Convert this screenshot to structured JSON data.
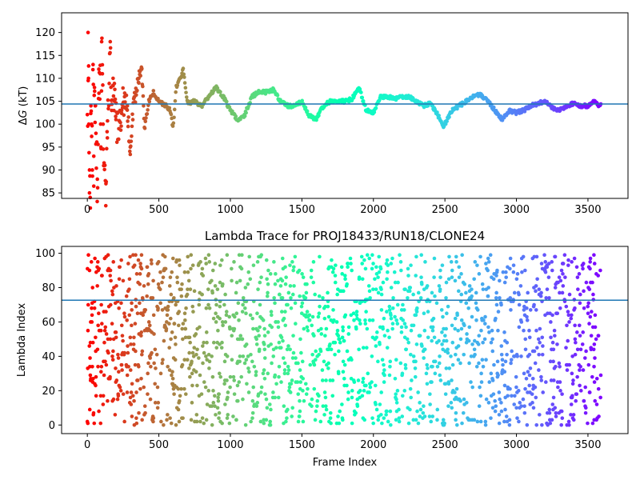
{
  "chart_data": [
    {
      "type": "scatter",
      "title": "",
      "xlabel": "",
      "ylabel": "ΔG (kT)",
      "ylabel_symbol": "ΔG",
      "ylabel_unit": "(kT)",
      "xlim": [
        -180,
        3780
      ],
      "ylim": [
        83.8,
        124.3
      ],
      "xticks": [
        0,
        500,
        1000,
        1500,
        2000,
        2500,
        3000,
        3500
      ],
      "yticks": [
        85,
        90,
        95,
        100,
        105,
        110,
        115,
        120
      ],
      "hline": 104.4,
      "hline_color": "#1f77b4",
      "colormap": "rainbow (reversed: red at frame 0, violet at end)",
      "grid": false,
      "series": [
        {
          "points_approx": [
            [
              5,
              120
            ],
            [
              8,
              110
            ],
            [
              10,
              100
            ],
            [
              15,
              90
            ],
            [
              20,
              84
            ],
            [
              25,
              104
            ],
            [
              30,
              100
            ],
            [
              35,
              90
            ],
            [
              40,
              113
            ],
            [
              45,
              93
            ],
            [
              50,
              108
            ],
            [
              55,
              104
            ],
            [
              60,
              98
            ],
            [
              70,
              88
            ],
            [
              80,
              112
            ],
            [
              90,
              111
            ],
            [
              95,
              95
            ],
            [
              100,
              118
            ],
            [
              105,
              111
            ],
            [
              110,
              100
            ],
            [
              120,
              91
            ],
            [
              130,
              87
            ],
            [
              140,
              97
            ],
            [
              160,
              118
            ],
            [
              170,
              103
            ],
            [
              180,
              110
            ],
            [
              190,
              105
            ],
            [
              200,
              101
            ],
            [
              220,
              99
            ],
            [
              240,
              103
            ],
            [
              260,
              106
            ],
            [
              280,
              104
            ],
            [
              300,
              95
            ],
            [
              330,
              106
            ],
            [
              360,
              110
            ],
            [
              380,
              112
            ],
            [
              400,
              99
            ],
            [
              430,
              105
            ],
            [
              460,
              107
            ],
            [
              500,
              105
            ],
            [
              550,
              104
            ],
            [
              580,
              103
            ],
            [
              600,
              99
            ],
            [
              620,
              108
            ],
            [
              650,
              110
            ],
            [
              670,
              112
            ],
            [
              700,
              104.5
            ],
            [
              750,
              105
            ],
            [
              800,
              104
            ],
            [
              850,
              106
            ],
            [
              900,
              108
            ],
            [
              950,
              106
            ],
            [
              1000,
              103
            ],
            [
              1050,
              101
            ],
            [
              1100,
              102
            ],
            [
              1150,
              106
            ],
            [
              1200,
              107
            ],
            [
              1250,
              107
            ],
            [
              1300,
              107.5
            ],
            [
              1350,
              105
            ],
            [
              1400,
              104
            ],
            [
              1450,
              104
            ],
            [
              1500,
              105
            ],
            [
              1550,
              102
            ],
            [
              1600,
              101
            ],
            [
              1650,
              104
            ],
            [
              1700,
              105
            ],
            [
              1750,
              105
            ],
            [
              1800,
              105
            ],
            [
              1850,
              105.5
            ],
            [
              1900,
              108
            ],
            [
              1950,
              103
            ],
            [
              2000,
              102.5
            ],
            [
              2050,
              106
            ],
            [
              2100,
              106
            ],
            [
              2150,
              105.5
            ],
            [
              2200,
              106
            ],
            [
              2250,
              106
            ],
            [
              2300,
              105
            ],
            [
              2350,
              104
            ],
            [
              2400,
              104.5
            ],
            [
              2450,
              102
            ],
            [
              2490,
              99.5
            ],
            [
              2550,
              103
            ],
            [
              2600,
              104
            ],
            [
              2650,
              105
            ],
            [
              2700,
              106
            ],
            [
              2750,
              106.5
            ],
            [
              2800,
              105
            ],
            [
              2850,
              103
            ],
            [
              2900,
              101
            ],
            [
              2950,
              103
            ],
            [
              3000,
              102.5
            ],
            [
              3050,
              103
            ],
            [
              3100,
              104
            ],
            [
              3150,
              104.5
            ],
            [
              3200,
              105
            ],
            [
              3250,
              103.5
            ],
            [
              3300,
              103
            ],
            [
              3350,
              104
            ],
            [
              3400,
              104.5
            ],
            [
              3450,
              104
            ],
            [
              3500,
              104
            ],
            [
              3550,
              105
            ],
            [
              3580,
              104
            ]
          ]
        }
      ]
    },
    {
      "type": "scatter",
      "title": "Lambda Trace for PROJ18433/RUN18/CLONE24",
      "xlabel": "Frame Index",
      "ylabel": "Lambda Index",
      "xlim": [
        -180,
        3780
      ],
      "ylim": [
        -5,
        104
      ],
      "xticks": [
        0,
        500,
        1000,
        1500,
        2000,
        2500,
        3000,
        3500
      ],
      "yticks": [
        0,
        20,
        40,
        60,
        80,
        100
      ],
      "hline": 72.7,
      "hline_color": "#1f77b4",
      "colormap": "rainbow (reversed: red at frame 0, violet at end)",
      "grid": false,
      "series": [
        {
          "description_points": "dense random scatter of lambda index 0–99 across frames 0–3590"
        }
      ]
    }
  ],
  "colors": {
    "hline": "#1f77b4",
    "axes": "#000000",
    "background": "#ffffff"
  }
}
